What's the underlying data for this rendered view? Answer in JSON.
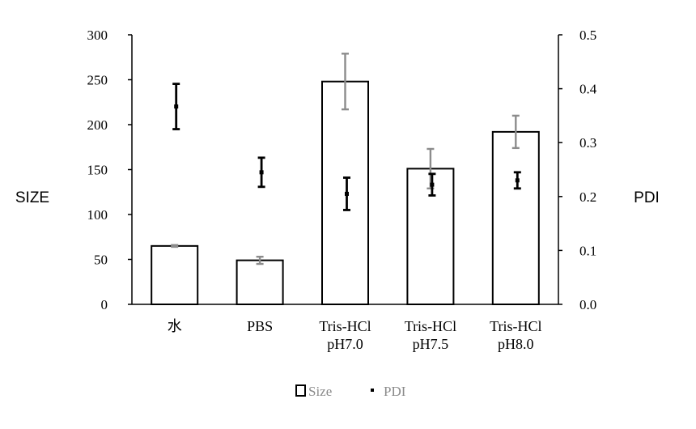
{
  "chart_data": {
    "type": "bar",
    "categories": [
      [
        "水"
      ],
      [
        "PBS"
      ],
      [
        "Tris-HCl",
        "pH7.0"
      ],
      [
        "Tris-HCl",
        "pH7.5"
      ],
      [
        "Tris-HCl",
        "pH8.0"
      ]
    ],
    "series": [
      {
        "name": "Size",
        "axis": "left",
        "mark": "bar",
        "values": [
          65,
          49,
          248,
          151,
          192
        ],
        "error": [
          1,
          4,
          31,
          22,
          18
        ]
      },
      {
        "name": "PDI",
        "axis": "right",
        "mark": "point",
        "values": [
          0.367,
          0.245,
          0.205,
          0.222,
          0.23
        ],
        "error": [
          0.042,
          0.027,
          0.03,
          0.02,
          0.015
        ]
      }
    ],
    "ylabel_left": "SIZE",
    "ylabel_right": "PDI",
    "ylim_left": [
      0,
      300
    ],
    "ylim_right": [
      0,
      0.5
    ],
    "yticks_left": [
      "0",
      "50",
      "100",
      "150",
      "200",
      "250",
      "300"
    ],
    "yticks_right": [
      "0.0",
      "0.1",
      "0.2",
      "0.3",
      "0.4",
      "0.5"
    ],
    "grid": false,
    "legend_position": "bottom-center",
    "colors": {
      "bar_fill": "#ffffff",
      "bar_stroke": "#000000",
      "size_error": "#8c8c8c",
      "pdi": "#000000",
      "legend_text": "#8a8a8a"
    }
  }
}
